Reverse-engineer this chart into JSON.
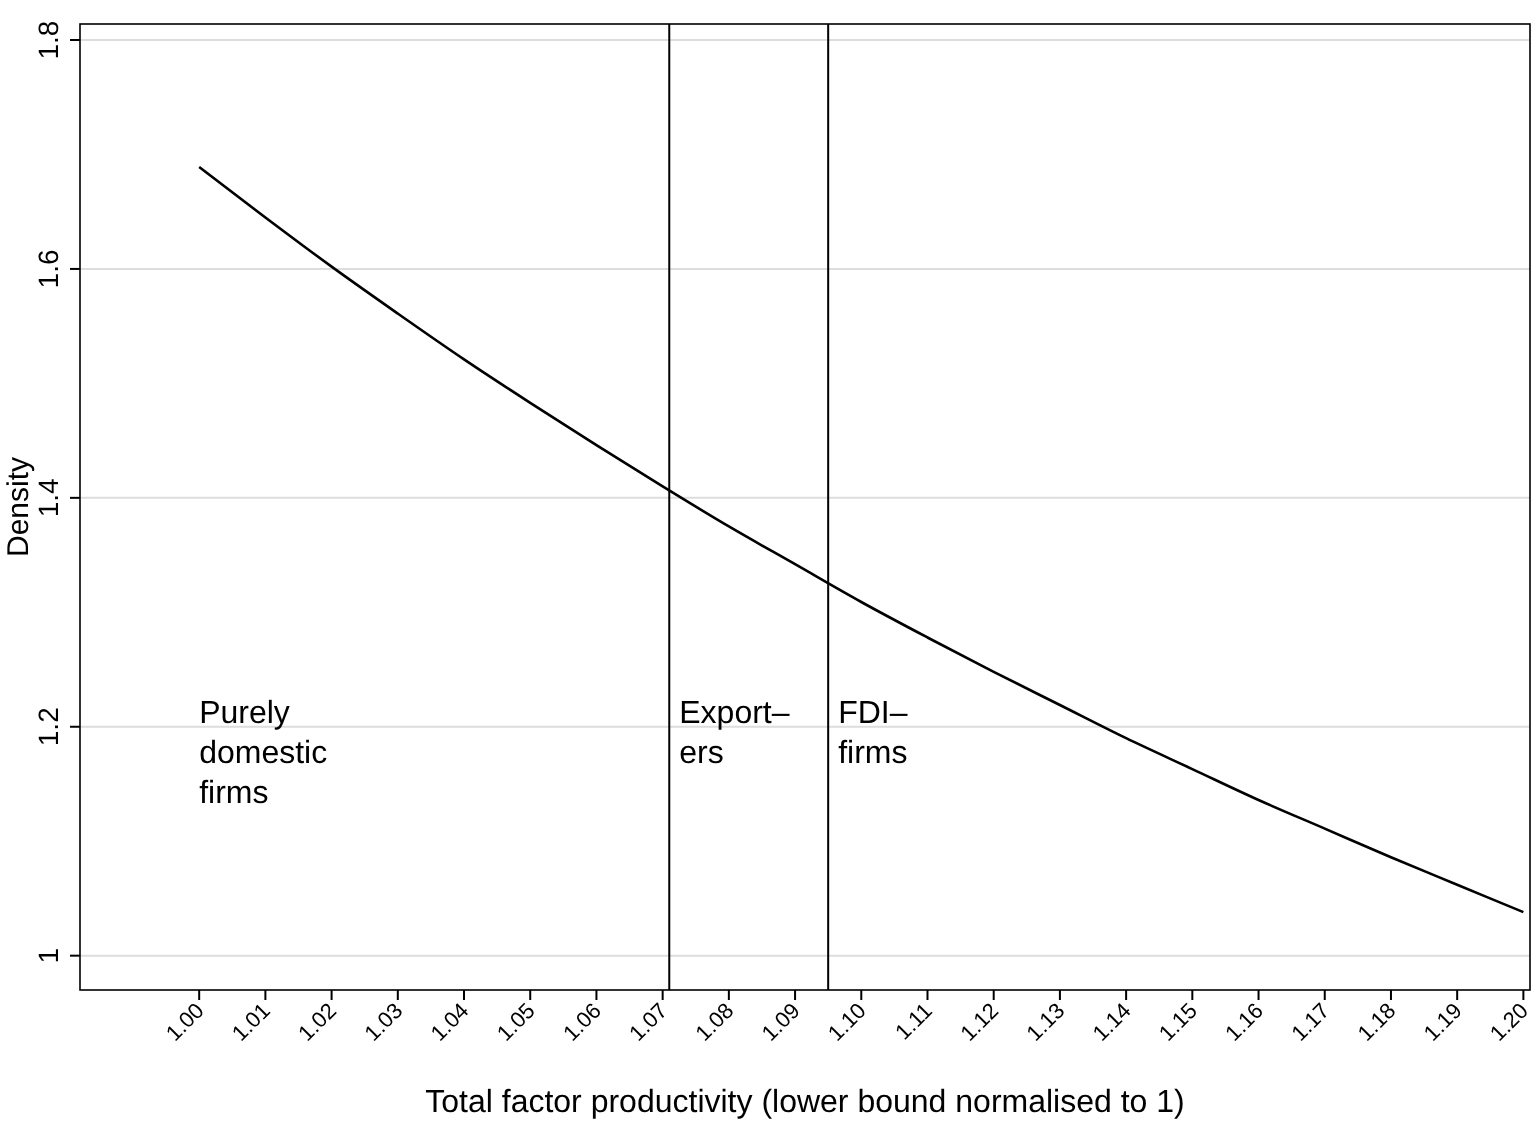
{
  "chart_data": {
    "type": "line",
    "xlabel": "Total factor productivity (lower bound normalised to 1)",
    "ylabel": "Density",
    "x": [
      1.0,
      1.01,
      1.02,
      1.03,
      1.04,
      1.05,
      1.06,
      1.07,
      1.08,
      1.09,
      1.1,
      1.11,
      1.12,
      1.13,
      1.14,
      1.15,
      1.16,
      1.17,
      1.18,
      1.19,
      1.2
    ],
    "series": [
      {
        "color": "#000000",
        "values": [
          1.689,
          1.645,
          1.602,
          1.561,
          1.521,
          1.483,
          1.446,
          1.41,
          1.375,
          1.342,
          1.309,
          1.278,
          1.248,
          1.219,
          1.19,
          1.163,
          1.136,
          1.111,
          1.086,
          1.062,
          1.038
        ]
      }
    ],
    "xlim": [
      0.982,
      1.201
    ],
    "ylim": [
      0.97,
      1.814
    ],
    "xticks": [
      {
        "value": 1.0,
        "label": "1.00"
      },
      {
        "value": 1.01,
        "label": "1.01"
      },
      {
        "value": 1.02,
        "label": "1.02"
      },
      {
        "value": 1.03,
        "label": "1.03"
      },
      {
        "value": 1.04,
        "label": "1.04"
      },
      {
        "value": 1.05,
        "label": "1.05"
      },
      {
        "value": 1.06,
        "label": "1.06"
      },
      {
        "value": 1.07,
        "label": "1.07"
      },
      {
        "value": 1.08,
        "label": "1.08"
      },
      {
        "value": 1.09,
        "label": "1.09"
      },
      {
        "value": 1.1,
        "label": "1.10"
      },
      {
        "value": 1.11,
        "label": "1.11"
      },
      {
        "value": 1.12,
        "label": "1.12"
      },
      {
        "value": 1.13,
        "label": "1.13"
      },
      {
        "value": 1.14,
        "label": "1.14"
      },
      {
        "value": 1.15,
        "label": "1.15"
      },
      {
        "value": 1.16,
        "label": "1.16"
      },
      {
        "value": 1.17,
        "label": "1.17"
      },
      {
        "value": 1.18,
        "label": "1.18"
      },
      {
        "value": 1.19,
        "label": "1.19"
      },
      {
        "value": 1.2,
        "label": "1.20"
      }
    ],
    "yticks": [
      1,
      1.2,
      1.4,
      1.6,
      1.8
    ],
    "grid": "y",
    "marker": "none",
    "line_style": "solid",
    "ref_lines": [
      {
        "axis": "x",
        "value": 1.071,
        "color": "#000000"
      },
      {
        "axis": "x",
        "value": 1.095,
        "color": "#000000"
      }
    ],
    "annotations": [
      "Purely\ndomestic\nfirms",
      "Export–\ners",
      "FDI–\nfirms"
    ]
  }
}
